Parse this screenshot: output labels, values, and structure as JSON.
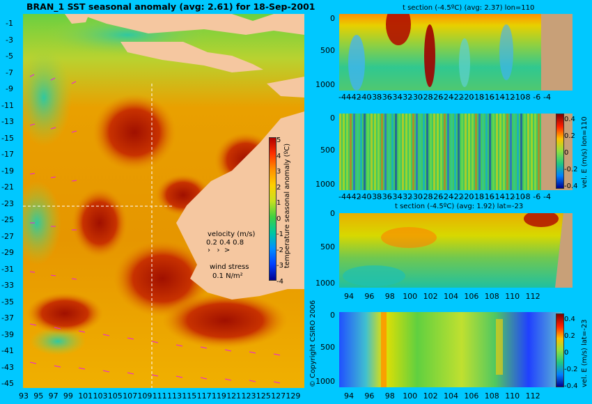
{
  "map": {
    "title": "BRAN_1  SST seasonal anomaly (avg: 2.61) for 18-Sep-2001",
    "colorbar_label": "temperature seasonal anomaly (ºC)",
    "colorbar_ticks": [
      "5",
      "4",
      "3",
      "2",
      "1",
      "0",
      "-1",
      "-2",
      "-3",
      "-4"
    ],
    "y_ticks": [
      "-1",
      "-3",
      "-5",
      "-7",
      "-9",
      "-11",
      "-13",
      "-15",
      "-17",
      "-19",
      "-21",
      "-23",
      "-25",
      "-27",
      "-29",
      "-31",
      "-33",
      "-35",
      "-37",
      "-39",
      "-41",
      "-43",
      "-45"
    ],
    "x_ticks": [
      "93",
      "95",
      "97",
      "99",
      "101",
      "103",
      "105",
      "107",
      "109",
      "111",
      "113",
      "115",
      "117",
      "119",
      "121",
      "123",
      "125",
      "127",
      "129"
    ],
    "velocity_label": "velocity (m/s)",
    "velocity_scale": "0.2 0.4 0.8",
    "wind_label": "wind stress",
    "wind_scale": "0.1 N/m²",
    "copyright": "© Copyright CSIRO 2006",
    "colors": {
      "land": "#f5c7a0",
      "warm": "#b41e00",
      "mid": "#e89a00",
      "cool": "#3fc4b5",
      "vector": "#e81ce8"
    }
  },
  "panels": {
    "p1": {
      "title": "t section (-4.5ºC) (avg: 2.37) lon=110",
      "y_ticks": [
        "0",
        "500",
        "1000"
      ],
      "x_ticks": [
        "-44",
        "-42",
        "-40",
        "-38",
        "-36",
        "-34",
        "-32",
        "-30",
        "-28",
        "-26",
        "-24",
        "-22",
        "-20",
        "-18",
        "-16",
        "-14",
        "-12",
        "-10",
        "-8",
        "-6",
        "-4"
      ]
    },
    "p2": {
      "title": "",
      "y_ticks": [
        "0",
        "500",
        "1000"
      ],
      "x_ticks": [
        "-44",
        "-42",
        "-40",
        "-38",
        "-36",
        "-34",
        "-32",
        "-30",
        "-28",
        "-26",
        "-24",
        "-22",
        "-20",
        "-18",
        "-16",
        "-14",
        "-12",
        "-10",
        "-8",
        "-6",
        "-4"
      ],
      "cbar_label": "vel. E (m/s) lon=110",
      "cbar_ticks": [
        "0.4",
        "0.2",
        "0",
        "-0.2",
        "-0.4"
      ]
    },
    "p3": {
      "title": "t section (-4.5ºC) (avg: 1.92) lat=-23",
      "y_ticks": [
        "0",
        "500",
        "1000"
      ],
      "x_ticks": [
        "94",
        "96",
        "98",
        "100",
        "102",
        "104",
        "106",
        "108",
        "110",
        "112"
      ]
    },
    "p4": {
      "title": "",
      "y_ticks": [
        "0",
        "500",
        "1000"
      ],
      "x_ticks": [
        "94",
        "96",
        "98",
        "100",
        "102",
        "104",
        "106",
        "108",
        "110",
        "112"
      ],
      "cbar_label": "vel. E (m/s) lat=-23",
      "cbar_ticks": [
        "0.4",
        "0.2",
        "0",
        "-0.2",
        "-0.4"
      ]
    }
  }
}
